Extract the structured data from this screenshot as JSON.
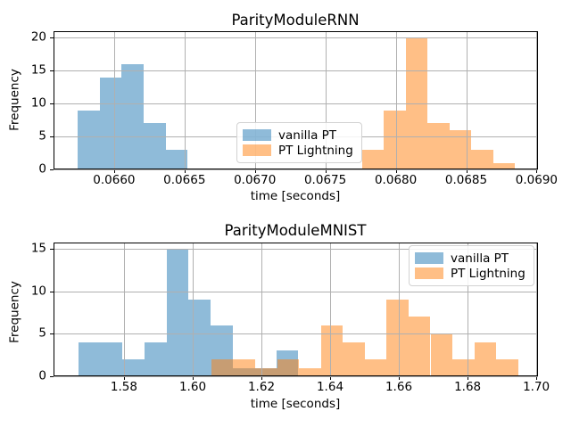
{
  "figure": {
    "background": "#ffffff",
    "grid_color": "#b0b0b0",
    "spine_color": "#000000",
    "text_color": "#000000"
  },
  "chart_data": [
    {
      "type": "histogram",
      "title": "ParityModuleRNN",
      "xlabel": "time [seconds]",
      "ylabel": "Frequency",
      "xlim": [
        0.06557,
        0.06901
      ],
      "ylim": [
        0,
        21
      ],
      "xtick_values": [
        0.066,
        0.0665,
        0.067,
        0.0675,
        0.068,
        0.0685,
        0.069
      ],
      "xtick_labels": [
        "0.0660",
        "0.0665",
        "0.0670",
        "0.0675",
        "0.0680",
        "0.0685",
        "0.0690"
      ],
      "ytick_values": [
        0,
        5,
        10,
        15,
        20
      ],
      "ytick_labels": [
        "0",
        "5",
        "10",
        "15",
        "20"
      ],
      "grid": true,
      "legend": {
        "position": "center",
        "labels": [
          "vanilla PT",
          "PT Lightning"
        ]
      },
      "series": [
        {
          "name": "vanilla PT",
          "color": "#1f77b4",
          "alpha": 0.5,
          "bin_start": 0.065742,
          "bin_width": 0.000156,
          "counts": [
            9,
            14,
            16,
            7,
            3
          ]
        },
        {
          "name": "PT Lightning",
          "color": "#ff7f0e",
          "alpha": 0.5,
          "bin_start": 0.067761,
          "bin_width": 0.000155,
          "counts": [
            3,
            9,
            20,
            7,
            6,
            3,
            1
          ]
        }
      ]
    },
    {
      "type": "histogram",
      "title": "ParityModuleMNIST",
      "xlabel": "time [seconds]",
      "ylabel": "Frequency",
      "xlim": [
        1.5595,
        1.7005
      ],
      "ylim": [
        0,
        15.75
      ],
      "xtick_values": [
        1.58,
        1.6,
        1.62,
        1.64,
        1.66,
        1.68,
        1.7
      ],
      "xtick_labels": [
        "1.58",
        "1.60",
        "1.62",
        "1.64",
        "1.66",
        "1.68",
        "1.70"
      ],
      "ytick_values": [
        0,
        5,
        10,
        15
      ],
      "ytick_labels": [
        "0",
        "5",
        "10",
        "15"
      ],
      "grid": true,
      "legend": {
        "position": "upper right",
        "labels": [
          "vanilla PT",
          "PT Lightning"
        ]
      },
      "series": [
        {
          "name": "vanilla PT",
          "color": "#1f77b4",
          "alpha": 0.5,
          "bin_start": 1.5668,
          "bin_width": 0.0064,
          "counts": [
            4,
            4,
            2,
            4,
            15,
            9,
            6,
            1,
            1,
            3
          ]
        },
        {
          "name": "PT Lightning",
          "color": "#ff7f0e",
          "alpha": 0.5,
          "bin_start": 1.6055,
          "bin_width": 0.00637,
          "counts": [
            2,
            2,
            1,
            2,
            1,
            6,
            4,
            2,
            9,
            7,
            5,
            2,
            4,
            2
          ]
        }
      ]
    }
  ]
}
